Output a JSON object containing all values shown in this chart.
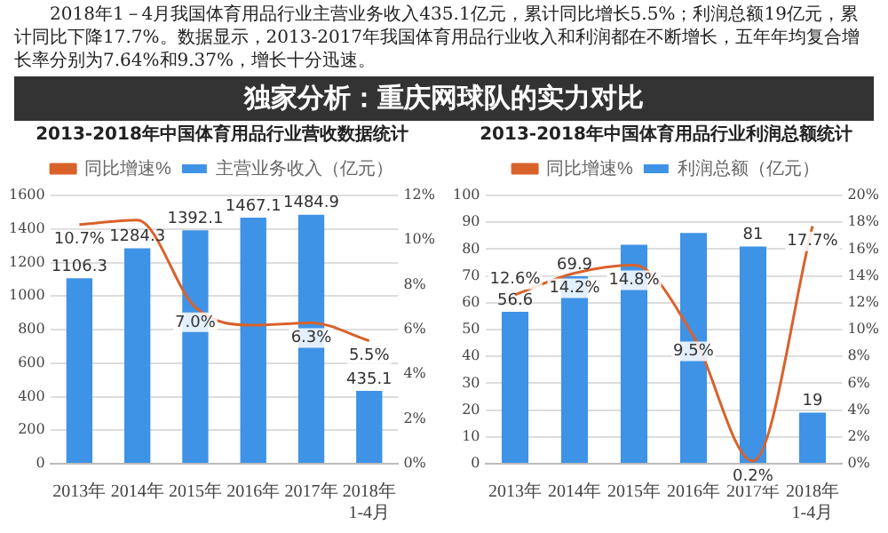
{
  "chart_data": [
    {
      "type": "other",
      "title": "独家分析：重庆网球队的实力对比",
      "annotations": [
        "2018年1－4月我国体育用品行业主营业务收入435.1亿元，累计同比增长5.5%；利润总额19亿元，累计同比下降17.7%。数据显示，2013-2017年我国体育用品行业收入和利润都在不断增长，五年年均复合增长率分别为7.64%和9.37%，增长十分迅速。"
      ]
    },
    {
      "type": "bar",
      "title": "2013-2018年中国体育用品行业营收数据统计",
      "categories": [
        "2013年",
        "2014年",
        "2015年",
        "2016年",
        "2017年",
        "2018年1-4月"
      ],
      "series": [
        {
          "name": "主营业务收入（亿元）",
          "color": "#3f93e6",
          "values": [
            1106.3,
            1284.3,
            1392.1,
            1467.1,
            1484.9,
            435.1
          ],
          "value_labels": [
            "1106.3",
            "1284.3",
            "1392.1",
            "1467.1",
            "1484.9",
            "435.1"
          ]
        },
        {
          "name": "同比增速%",
          "type": "line",
          "axis": "y2",
          "color": "#d9622b",
          "values": [
            10.7,
            10.9,
            7.0,
            6.2,
            6.3,
            5.5
          ],
          "value_labels": [
            "10.7%",
            null,
            "7.0%",
            null,
            "6.3%",
            "5.5%"
          ]
        }
      ],
      "ylim": [
        0,
        1600
      ],
      "yticks": [
        0,
        200,
        400,
        600,
        800,
        1000,
        1200,
        1400,
        1600
      ],
      "y2lim": [
        0,
        12
      ],
      "y2ticks": [
        {
          "value": 0,
          "label": "0%"
        },
        {
          "value": 2,
          "label": "2%"
        },
        {
          "value": 4,
          "label": "4%"
        },
        {
          "value": 6,
          "label": "6%"
        },
        {
          "value": 8,
          "label": "8%"
        },
        {
          "value": 10,
          "label": "10%"
        },
        {
          "value": 12,
          "label": "12%"
        }
      ],
      "grid": "y",
      "legend": "top",
      "marker": "none"
    },
    {
      "type": "bar",
      "title": "2013-2018年中国体育用品行业利润总额统计",
      "categories": [
        "2013年",
        "2014年",
        "2015年",
        "2016年",
        "2017年",
        "2018年1-4月"
      ],
      "series": [
        {
          "name": "利润总额（亿元）",
          "color": "#3f93e6",
          "values": [
            56.6,
            69.9,
            81.6,
            86,
            81,
            19
          ],
          "value_labels": [
            "56.6",
            "69.9",
            null,
            null,
            "81",
            "19"
          ]
        },
        {
          "name": "同比增速%",
          "type": "line",
          "axis": "y2",
          "color": "#d9622b",
          "values": [
            12.6,
            14.2,
            14.8,
            9.5,
            0.2,
            17.7
          ],
          "value_labels": [
            "12.6%",
            "14.2%",
            "14.8%",
            "9.5%",
            "0.2%",
            "17.7%"
          ]
        }
      ],
      "ylim": [
        0,
        100
      ],
      "yticks": [
        0,
        10,
        20,
        30,
        40,
        50,
        60,
        70,
        80,
        90,
        100
      ],
      "y2lim": [
        0,
        20
      ],
      "y2ticks": [
        {
          "value": 0,
          "label": "0%"
        },
        {
          "value": 2,
          "label": "2%"
        },
        {
          "value": 4,
          "label": "4%"
        },
        {
          "value": 6,
          "label": "6%"
        },
        {
          "value": 8,
          "label": "8%"
        },
        {
          "value": 10,
          "label": "10%"
        },
        {
          "value": 12,
          "label": "12%"
        },
        {
          "value": 14,
          "label": "14%"
        },
        {
          "value": 16,
          "label": "16%"
        },
        {
          "value": 18,
          "label": "18%"
        },
        {
          "value": 20,
          "label": "20%"
        }
      ],
      "grid": "y",
      "legend": "top",
      "marker": "none"
    }
  ]
}
